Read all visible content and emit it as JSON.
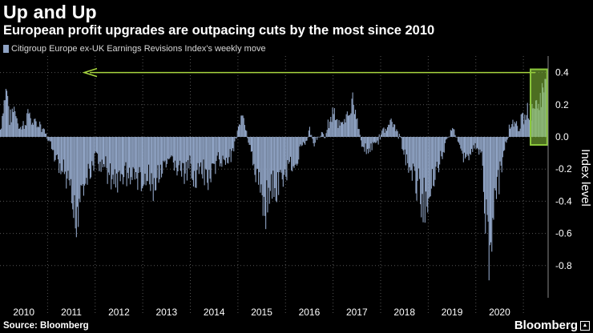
{
  "title": "Up and Up",
  "subtitle": "European profit upgrades are outpacing cuts by the most since 2010",
  "source": "Source: Bloomberg",
  "brand": "Bloomberg",
  "colors": {
    "bar": "#8fa3c4",
    "arrow": "#a8d63f",
    "highlight": "#8cc83c",
    "grid": "#555555",
    "axis": "#888888"
  },
  "chart_data": {
    "type": "bar",
    "title": "Up and Up",
    "subtitle": "European profit upgrades are outpacing cuts by the most since 2010",
    "legend": [
      "Citigroup Europe ex-UK Earnings Revisions Index's weekly move"
    ],
    "xlabel": "",
    "ylabel": "Index level",
    "ylim": [
      -0.95,
      0.5
    ],
    "yticks": [
      0.4,
      0.2,
      0.0,
      -0.2,
      -0.4,
      -0.6,
      -0.8
    ],
    "ytick_labels": [
      "0.4",
      "0.2",
      "0.0",
      "-0.2",
      "-0.4",
      "-0.6",
      "-0.8"
    ],
    "xlim": [
      2010.0,
      2021.52
    ],
    "xticks": [
      "2010",
      "2011",
      "2012",
      "2013",
      "2014",
      "2015",
      "2016",
      "2017",
      "2018",
      "2019",
      "2020"
    ],
    "grid": true,
    "annotations": [
      {
        "type": "horizontal-arrow",
        "y": 0.4,
        "note": "arrow pointing back to early 2010 level"
      },
      {
        "type": "highlight-box",
        "x": [
          2021.15,
          2021.5
        ],
        "y": [
          -0.05,
          0.42
        ]
      }
    ],
    "anchors": [
      [
        2010.0,
        0.05
      ],
      [
        2010.06,
        0.22
      ],
      [
        2010.13,
        0.37
      ],
      [
        2010.2,
        0.12
      ],
      [
        2010.3,
        0.22
      ],
      [
        2010.4,
        0.05
      ],
      [
        2010.5,
        0.1
      ],
      [
        2010.6,
        0.18
      ],
      [
        2010.7,
        0.08
      ],
      [
        2010.8,
        0.1
      ],
      [
        2010.9,
        0.05
      ],
      [
        2010.98,
        0.0
      ],
      [
        2011.1,
        -0.1
      ],
      [
        2011.2,
        -0.18
      ],
      [
        2011.3,
        -0.25
      ],
      [
        2011.4,
        -0.35
      ],
      [
        2011.5,
        -0.5
      ],
      [
        2011.56,
        -0.62
      ],
      [
        2011.62,
        -0.55
      ],
      [
        2011.7,
        -0.35
      ],
      [
        2011.8,
        -0.3
      ],
      [
        2011.9,
        -0.25
      ],
      [
        2012.0,
        -0.15
      ],
      [
        2012.1,
        -0.2
      ],
      [
        2012.2,
        -0.22
      ],
      [
        2012.3,
        -0.28
      ],
      [
        2012.4,
        -0.3
      ],
      [
        2012.5,
        -0.35
      ],
      [
        2012.6,
        -0.25
      ],
      [
        2012.7,
        -0.3
      ],
      [
        2012.8,
        -0.28
      ],
      [
        2012.9,
        -0.3
      ],
      [
        2013.0,
        -0.35
      ],
      [
        2013.1,
        -0.3
      ],
      [
        2013.2,
        -0.38
      ],
      [
        2013.3,
        -0.3
      ],
      [
        2013.4,
        -0.25
      ],
      [
        2013.5,
        -0.22
      ],
      [
        2013.6,
        -0.18
      ],
      [
        2013.7,
        -0.22
      ],
      [
        2013.8,
        -0.25
      ],
      [
        2013.9,
        -0.28
      ],
      [
        2014.0,
        -0.22
      ],
      [
        2014.1,
        -0.3
      ],
      [
        2014.2,
        -0.25
      ],
      [
        2014.3,
        -0.32
      ],
      [
        2014.4,
        -0.28
      ],
      [
        2014.5,
        -0.25
      ],
      [
        2014.6,
        -0.15
      ],
      [
        2014.7,
        -0.18
      ],
      [
        2014.8,
        -0.15
      ],
      [
        2014.9,
        -0.08
      ],
      [
        2015.0,
        0.05
      ],
      [
        2015.05,
        0.12
      ],
      [
        2015.1,
        0.2
      ],
      [
        2015.15,
        0.1
      ],
      [
        2015.2,
        0.0
      ],
      [
        2015.3,
        -0.18
      ],
      [
        2015.4,
        -0.3
      ],
      [
        2015.5,
        -0.42
      ],
      [
        2015.55,
        -0.52
      ],
      [
        2015.6,
        -0.45
      ],
      [
        2015.7,
        -0.35
      ],
      [
        2015.8,
        -0.4
      ],
      [
        2015.9,
        -0.3
      ],
      [
        2016.0,
        -0.3
      ],
      [
        2016.1,
        -0.15
      ],
      [
        2016.2,
        -0.25
      ],
      [
        2016.3,
        -0.1
      ],
      [
        2016.4,
        -0.05
      ],
      [
        2016.5,
        0.05
      ],
      [
        2016.6,
        -0.05
      ],
      [
        2016.7,
        0.02
      ],
      [
        2016.8,
        0.0
      ],
      [
        2016.9,
        0.1
      ],
      [
        2017.0,
        0.2
      ],
      [
        2017.1,
        0.12
      ],
      [
        2017.2,
        0.08
      ],
      [
        2017.3,
        0.16
      ],
      [
        2017.4,
        0.27
      ],
      [
        2017.45,
        0.22
      ],
      [
        2017.5,
        0.1
      ],
      [
        2017.6,
        -0.05
      ],
      [
        2017.7,
        -0.12
      ],
      [
        2017.8,
        -0.08
      ],
      [
        2017.9,
        -0.05
      ],
      [
        2018.0,
        0.02
      ],
      [
        2018.1,
        0.08
      ],
      [
        2018.2,
        0.1
      ],
      [
        2018.3,
        0.06
      ],
      [
        2018.4,
        0.0
      ],
      [
        2018.5,
        -0.15
      ],
      [
        2018.6,
        -0.22
      ],
      [
        2018.7,
        -0.3
      ],
      [
        2018.8,
        -0.38
      ],
      [
        2018.9,
        -0.48
      ],
      [
        2018.95,
        -0.52
      ],
      [
        2019.0,
        -0.4
      ],
      [
        2019.1,
        -0.28
      ],
      [
        2019.2,
        -0.2
      ],
      [
        2019.3,
        -0.12
      ],
      [
        2019.4,
        0.02
      ],
      [
        2019.5,
        0.05
      ],
      [
        2019.6,
        0.0
      ],
      [
        2019.7,
        -0.12
      ],
      [
        2019.8,
        -0.15
      ],
      [
        2019.9,
        -0.1
      ],
      [
        2020.0,
        -0.05
      ],
      [
        2020.1,
        -0.12
      ],
      [
        2020.15,
        -0.3
      ],
      [
        2020.2,
        -0.65
      ],
      [
        2020.25,
        -0.83
      ],
      [
        2020.3,
        -0.72
      ],
      [
        2020.4,
        -0.45
      ],
      [
        2020.5,
        -0.3
      ],
      [
        2020.6,
        -0.1
      ],
      [
        2020.7,
        0.08
      ],
      [
        2020.8,
        0.12
      ],
      [
        2020.9,
        0.08
      ],
      [
        2021.0,
        0.14
      ],
      [
        2021.1,
        0.18
      ],
      [
        2021.2,
        0.22
      ],
      [
        2021.3,
        0.25
      ],
      [
        2021.4,
        0.32
      ],
      [
        2021.48,
        0.36
      ]
    ]
  }
}
